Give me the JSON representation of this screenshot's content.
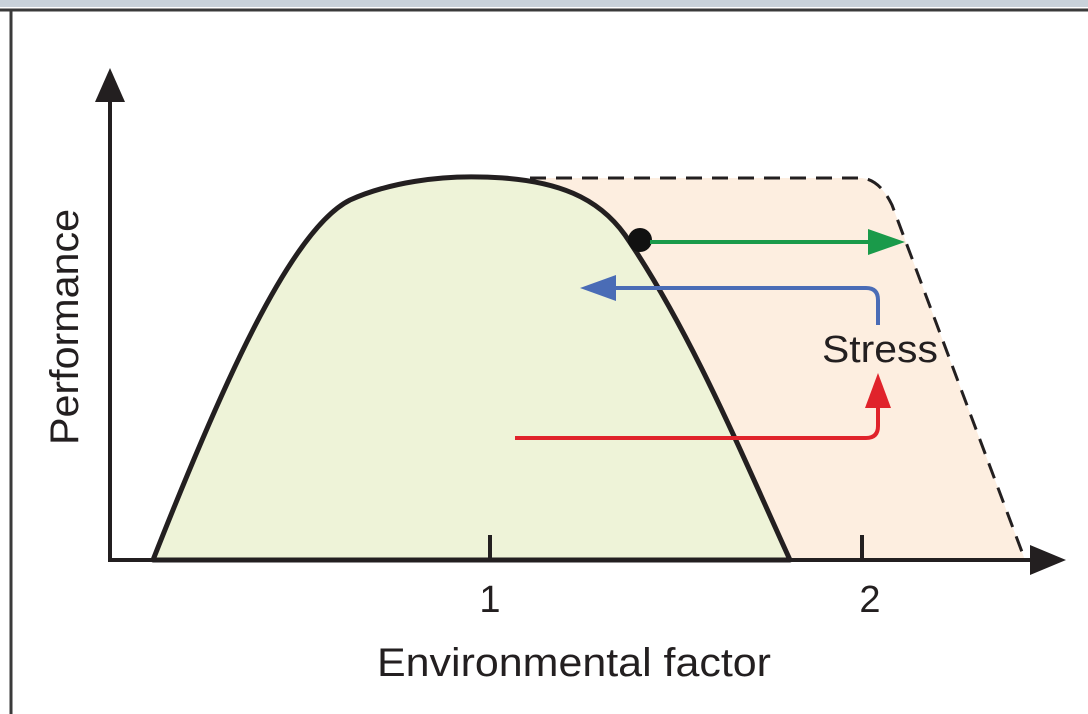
{
  "axes": {
    "y_label": "Performance",
    "x_label": "Environmental factor",
    "x_ticks": [
      "1",
      "2"
    ]
  },
  "annotation": "Stress"
}
